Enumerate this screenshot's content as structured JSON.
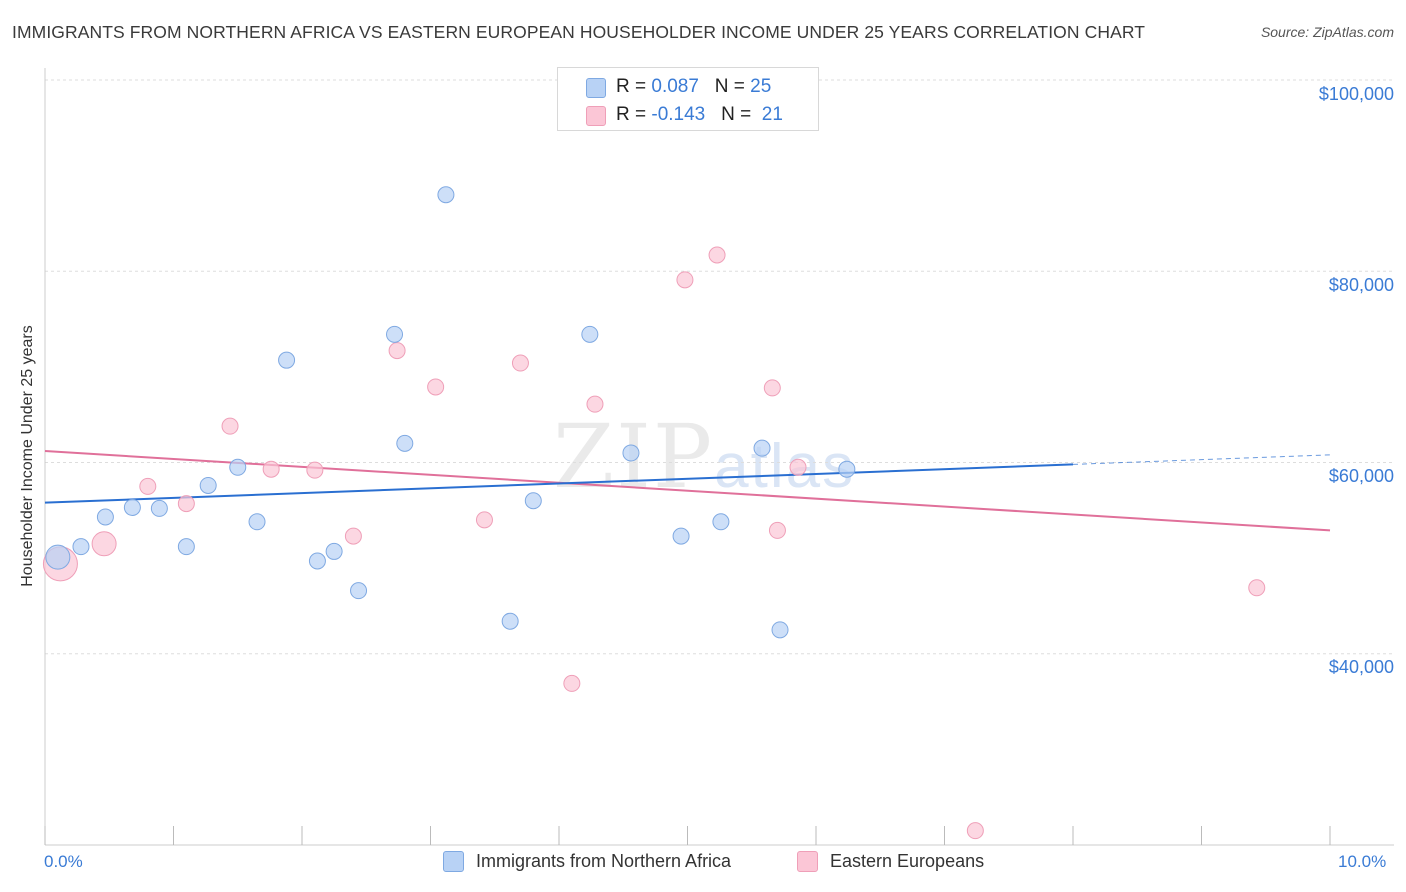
{
  "title": "IMMIGRANTS FROM NORTHERN AFRICA VS EASTERN EUROPEAN HOUSEHOLDER INCOME UNDER 25 YEARS CORRELATION CHART",
  "source": "Source: ZipAtlas.com",
  "watermark": {
    "zip": "ZIP",
    "atlas": "atlas"
  },
  "legend_stats": [
    {
      "r_label": "R = ",
      "r_value": "0.087",
      "n_label": "N = ",
      "n_value": "25"
    },
    {
      "r_label": "R = ",
      "r_value": "-0.143",
      "n_label": "N = ",
      "n_value": "21"
    }
  ],
  "colors": {
    "blue_fill": "#b8d2f5",
    "blue_stroke": "#7fa9e2",
    "blue_line": "#2a6fd1",
    "pink_fill": "#fbc6d6",
    "pink_stroke": "#ef9fb8",
    "pink_line": "#e0709a",
    "tick_text": "#3a7bd5",
    "grid": "#dddddd"
  },
  "chart_data": {
    "type": "scatter",
    "title": "IMMIGRANTS FROM NORTHERN AFRICA VS EASTERN EUROPEAN HOUSEHOLDER INCOME UNDER 25 YEARS CORRELATION CHART",
    "xlabel": "",
    "ylabel": "Householder Income Under 25 years",
    "xlim": [
      0,
      10
    ],
    "ylim": [
      20000,
      100000
    ],
    "x_tick_labels": [
      "0.0%",
      "10.0%"
    ],
    "y_ticks": [
      40000,
      60000,
      80000,
      100000
    ],
    "y_tick_labels": [
      "$40,000",
      "$60,000",
      "$80,000",
      "$100,000"
    ],
    "grid": true,
    "legend_position": "bottom",
    "series": [
      {
        "name": "Immigrants from Northern Africa",
        "color": "#b8d2f5",
        "trend": {
          "x": [
            0.0,
            8.0
          ],
          "y": [
            55800,
            59800
          ],
          "dashed_to": [
            10.0,
            60800
          ]
        },
        "points": [
          {
            "x": 0.1,
            "y": 50100,
            "s": 2
          },
          {
            "x": 0.28,
            "y": 51200,
            "s": 1
          },
          {
            "x": 0.47,
            "y": 54300,
            "s": 1
          },
          {
            "x": 0.68,
            "y": 55300,
            "s": 1
          },
          {
            "x": 0.89,
            "y": 55200,
            "s": 1
          },
          {
            "x": 1.1,
            "y": 51200,
            "s": 1
          },
          {
            "x": 1.27,
            "y": 57600,
            "s": 1
          },
          {
            "x": 1.5,
            "y": 59500,
            "s": 1
          },
          {
            "x": 1.65,
            "y": 53800,
            "s": 1
          },
          {
            "x": 1.88,
            "y": 70700,
            "s": 1
          },
          {
            "x": 2.12,
            "y": 49700,
            "s": 1
          },
          {
            "x": 2.25,
            "y": 50700,
            "s": 1
          },
          {
            "x": 2.44,
            "y": 46600,
            "s": 1
          },
          {
            "x": 2.72,
            "y": 73400,
            "s": 1
          },
          {
            "x": 2.8,
            "y": 62000,
            "s": 1
          },
          {
            "x": 3.12,
            "y": 88000,
            "s": 1
          },
          {
            "x": 3.62,
            "y": 43400,
            "s": 1
          },
          {
            "x": 3.8,
            "y": 56000,
            "s": 1
          },
          {
            "x": 4.24,
            "y": 73400,
            "s": 1
          },
          {
            "x": 4.56,
            "y": 61000,
            "s": 1
          },
          {
            "x": 4.95,
            "y": 52300,
            "s": 1
          },
          {
            "x": 5.26,
            "y": 53800,
            "s": 1
          },
          {
            "x": 5.58,
            "y": 61500,
            "s": 1
          },
          {
            "x": 5.72,
            "y": 42500,
            "s": 1
          },
          {
            "x": 6.24,
            "y": 59300,
            "s": 1
          }
        ]
      },
      {
        "name": "Eastern Europeans",
        "color": "#fbc6d6",
        "trend": {
          "x": [
            0.0,
            10.0
          ],
          "y": [
            61200,
            52900
          ]
        },
        "points": [
          {
            "x": 0.12,
            "y": 49400,
            "s": 3
          },
          {
            "x": 0.46,
            "y": 51500,
            "s": 2
          },
          {
            "x": 0.8,
            "y": 57500,
            "s": 1
          },
          {
            "x": 1.1,
            "y": 55700,
            "s": 1
          },
          {
            "x": 1.44,
            "y": 63800,
            "s": 1
          },
          {
            "x": 1.76,
            "y": 59300,
            "s": 1
          },
          {
            "x": 2.1,
            "y": 59200,
            "s": 1
          },
          {
            "x": 2.4,
            "y": 52300,
            "s": 1
          },
          {
            "x": 2.74,
            "y": 71700,
            "s": 1
          },
          {
            "x": 3.04,
            "y": 67900,
            "s": 1
          },
          {
            "x": 3.42,
            "y": 54000,
            "s": 1
          },
          {
            "x": 3.7,
            "y": 70400,
            "s": 1
          },
          {
            "x": 4.1,
            "y": 36900,
            "s": 1
          },
          {
            "x": 4.28,
            "y": 66100,
            "s": 1
          },
          {
            "x": 4.98,
            "y": 79100,
            "s": 1
          },
          {
            "x": 5.23,
            "y": 81700,
            "s": 1
          },
          {
            "x": 5.66,
            "y": 67800,
            "s": 1
          },
          {
            "x": 5.7,
            "y": 52900,
            "s": 1
          },
          {
            "x": 5.86,
            "y": 59500,
            "s": 1
          },
          {
            "x": 7.24,
            "y": 21500,
            "s": 1
          },
          {
            "x": 9.43,
            "y": 46900,
            "s": 1
          }
        ]
      }
    ]
  }
}
